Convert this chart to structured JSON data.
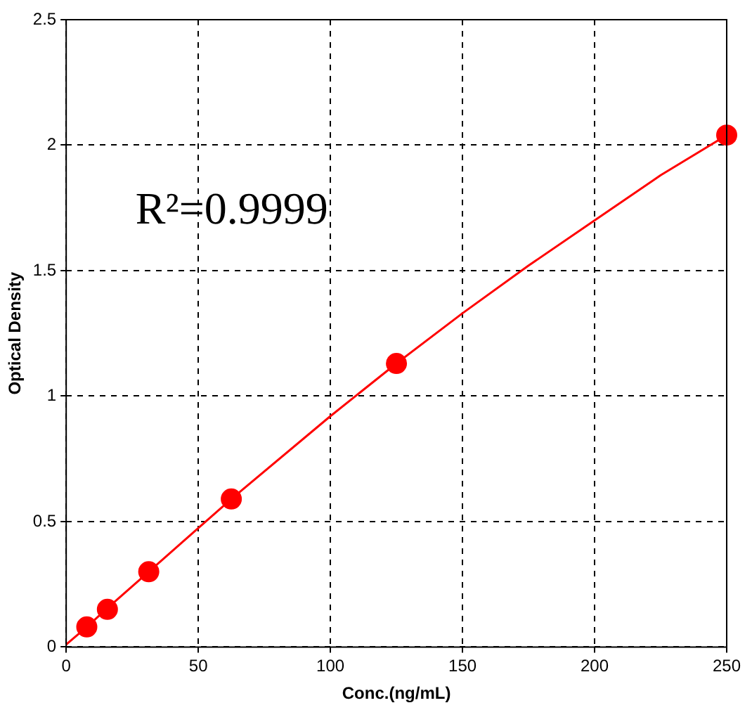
{
  "chart_data": {
    "type": "scatter",
    "xlabel": "Conc.(ng/mL)",
    "ylabel": "Optical Density",
    "xlim": [
      0,
      250
    ],
    "xticks": [
      0,
      50,
      100,
      150,
      200,
      250
    ],
    "ylim": [
      0,
      2.5
    ],
    "yticks": [
      0,
      0.5,
      1,
      1.5,
      2,
      2.5
    ],
    "grid": true,
    "legend": false,
    "marker": "circle",
    "annotations": [
      "R²=0.9999"
    ],
    "series": [
      {
        "type": "scatter",
        "color": "#ff0000",
        "x": [
          7.8,
          15.6,
          31.25,
          62.5,
          125,
          250
        ],
        "values": [
          0.08,
          0.15,
          0.3,
          0.59,
          1.13,
          2.04
        ]
      },
      {
        "type": "line",
        "color": "#ff0000",
        "marker": "none",
        "line_style": "solid",
        "x": [
          0,
          7.8,
          15.6,
          31.25,
          62.5,
          100,
          125,
          150,
          175,
          200,
          225,
          250
        ],
        "values": [
          0.01,
          0.08,
          0.155,
          0.3,
          0.59,
          0.92,
          1.13,
          1.33,
          1.52,
          1.7,
          1.88,
          2.04
        ]
      }
    ]
  }
}
